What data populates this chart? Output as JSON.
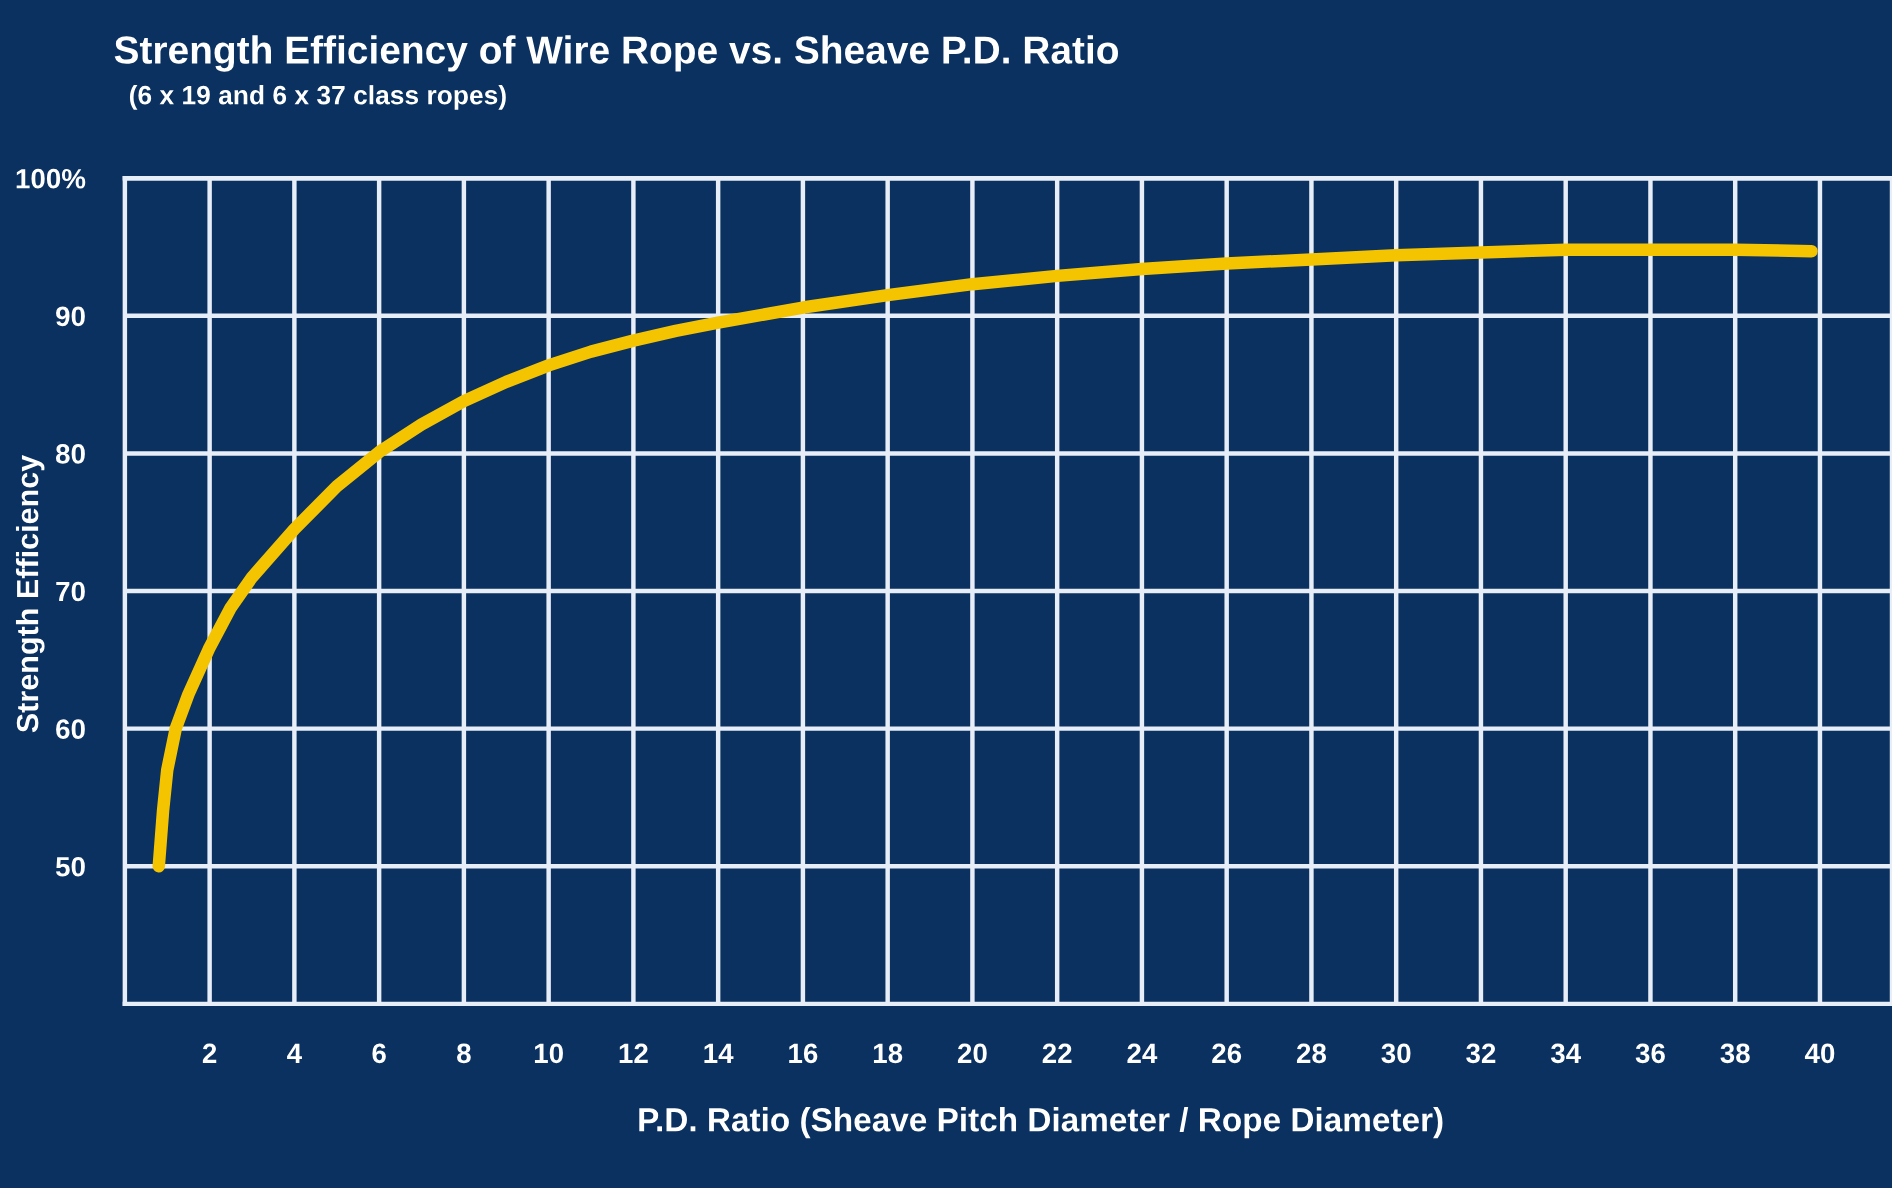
{
  "chart_data": {
    "type": "line",
    "title": "Strength Efficiency of Wire Rope vs. Sheave P.D. Ratio",
    "subtitle": "(6 x 19 and 6 x 37 class ropes)",
    "xlabel": "P.D. Ratio (Sheave Pitch Diameter / Rope Diameter)",
    "ylabel": "Strength Efficiency",
    "x": [
      0.8,
      0.9,
      1.0,
      1.2,
      1.5,
      2,
      2.5,
      3,
      4,
      5,
      6,
      7,
      8,
      9,
      10,
      11,
      12,
      13,
      14,
      16,
      18,
      20,
      22,
      24,
      26,
      28,
      30,
      32,
      34,
      36,
      38,
      39.8
    ],
    "series": [
      {
        "color": "#f5c400",
        "values": [
          50,
          54,
          57,
          60,
          62.5,
          65.9,
          68.8,
          71,
          74.5,
          77.6,
          80.1,
          82.1,
          83.8,
          85.2,
          86.4,
          87.4,
          88.2,
          88.9,
          89.5,
          90.6,
          91.5,
          92.3,
          92.9,
          93.4,
          93.8,
          94.1,
          94.4,
          94.6,
          94.8,
          94.8,
          94.8,
          94.7
        ]
      }
    ],
    "xlim": [
      0,
      41.7
    ],
    "ylim": [
      40,
      100
    ],
    "xticks": [
      2,
      4,
      6,
      8,
      10,
      12,
      14,
      16,
      18,
      20,
      22,
      24,
      26,
      28,
      30,
      32,
      34,
      36,
      38,
      40
    ],
    "yticks": [
      {
        "value": 100,
        "label": "100%"
      },
      90,
      80,
      70,
      60,
      50
    ],
    "grid": true,
    "marker": "none",
    "line_style": "solid"
  }
}
